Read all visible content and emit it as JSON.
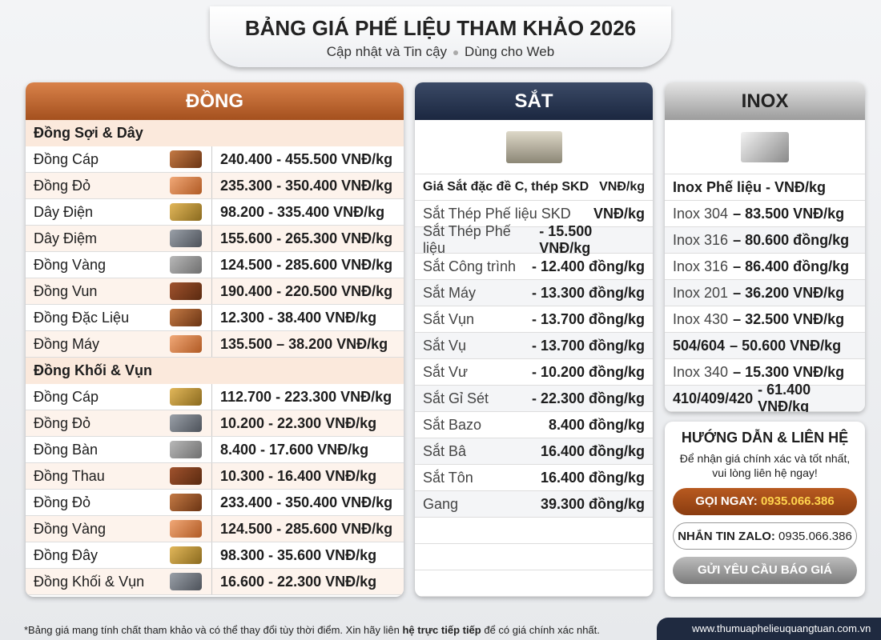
{
  "header": {
    "title": "BẢNG GIÁ PHẾ LIỆU THAM KHẢO 2026",
    "subtitle": [
      "Cập nhật và Tin cậy",
      "Dùng cho Web"
    ]
  },
  "dong": {
    "title": "ĐỒNG",
    "sections": [
      {
        "heading": "Đồng Sợi & Dây",
        "rows": [
          [
            "Đồng Cáp",
            "240.400 - 455.500 VNĐ/kg"
          ],
          [
            "Đồng Đỏ",
            "235.300 - 350.400 VNĐ/kg"
          ],
          [
            "Dây Điện",
            "98.200 - 335.400 VNĐ/kg"
          ],
          [
            "Dây Điệm",
            "155.600 - 265.300 VNĐ/kg"
          ],
          [
            "Đồng Vàng",
            "124.500 - 285.600 VNĐ/kg"
          ],
          [
            "Đồng Vun",
            "190.400 - 220.500 VNĐ/kg"
          ],
          [
            "Đồng Đặc Liệu",
            "12.300 - 38.400 VNĐ/kg"
          ],
          [
            "Đồng Máy",
            "135.500 – 38.200 VNĐ/kg"
          ]
        ]
      },
      {
        "heading": "Đồng Khối & Vụn",
        "rows": [
          [
            "Đồng Cáp",
            "112.700 - 223.300 VNĐ/kg"
          ],
          [
            "Đồng Đỏ",
            "10.200 - 22.300 VNĐ/kg"
          ],
          [
            "Đồng Bàn",
            "8.400 - 17.600 VNĐ/kg"
          ],
          [
            "Đồng Thau",
            "10.300 - 16.400 VNĐ/kg"
          ],
          [
            "Đồng Đỏ",
            "233.400 - 350.400 VNĐ/kg"
          ],
          [
            "Đồng Vàng",
            "124.500 - 285.600 VNĐ/kg"
          ],
          [
            "Đồng Đây",
            "98.300 - 35.600 VNĐ/kg"
          ],
          [
            "Đồng Khối & Vụn",
            "16.600 - 22.300 VNĐ/kg"
          ]
        ]
      }
    ]
  },
  "sat": {
    "title": "SẮT",
    "heading": [
      "Giá Sắt đặc đề C, thép SKD",
      "VNĐ/kg"
    ],
    "rows": [
      [
        "Sắt Thép Phế liệu SKD",
        "VNĐ/kg"
      ],
      [
        "Sắt Thép Phế liệu",
        "- 15.500 VNĐ/kg"
      ],
      [
        "Sắt Công trình",
        "- 12.400 đồng/kg"
      ],
      [
        "Sắt Máy",
        "- 13.300 đồng/kg"
      ],
      [
        "Sắt Vụn",
        "- 13.700 đồng/kg"
      ],
      [
        "Sắt Vụ",
        "- 13.700 đồng/kg"
      ],
      [
        "Sắt Vư",
        "- 10.200 đồng/kg"
      ],
      [
        "Sắt Gỉ Sét",
        "- 22.300 đồng/kg"
      ],
      [
        "Sắt Bazo",
        "8.400 đồng/kg"
      ],
      [
        "Sắt Bâ",
        "16.400 đồng/kg"
      ],
      [
        "Sắt Tôn",
        "16.400 đồng/kg"
      ],
      [
        "Gang",
        "39.300 đồng/kg"
      ]
    ]
  },
  "inox": {
    "title": "INOX",
    "heading": "Inox Phế liệu - VNĐ/kg",
    "rows": [
      [
        "Inox 304",
        "– 83.500 VNĐ/kg"
      ],
      [
        "Inox 316",
        "– 80.600 đồng/kg"
      ],
      [
        "Inox 316",
        "– 86.400 đồng/kg"
      ],
      [
        "Inox 201",
        "– 36.200 VNĐ/kg"
      ],
      [
        "Inox 430",
        "– 32.500 VNĐ/kg"
      ],
      [
        "504/604",
        "– 50.600 VNĐ/kg"
      ],
      [
        "Inox 340",
        "– 15.300 VNĐ/kg"
      ],
      [
        "410/409/420",
        "- 61.400 VNĐ/kg"
      ]
    ]
  },
  "contact": {
    "title": "HƯỚNG DẪN & LIÊN HỆ",
    "text": "Để nhận giá chính xác và tốt nhất, vui lòng liên hệ ngay!",
    "call": {
      "label": "GỌI NGAY:",
      "phone": "0935.066.386"
    },
    "zalo": {
      "label": "NHẮN TIN ZALO:",
      "phone": "0935.066.386"
    },
    "quote": "GỬI YÊU CẦU BÁO GIÁ"
  },
  "footer": {
    "note": [
      "*Bảng giá mang tính chất tham khảo và có thể thay đổi tùy thời điểm. Xin hãy liên ",
      "hệ trực tiếp tiếp",
      " để có giá chính xác nhất."
    ],
    "website": "www.thumuaphelieuquangtuan.com.vn"
  }
}
